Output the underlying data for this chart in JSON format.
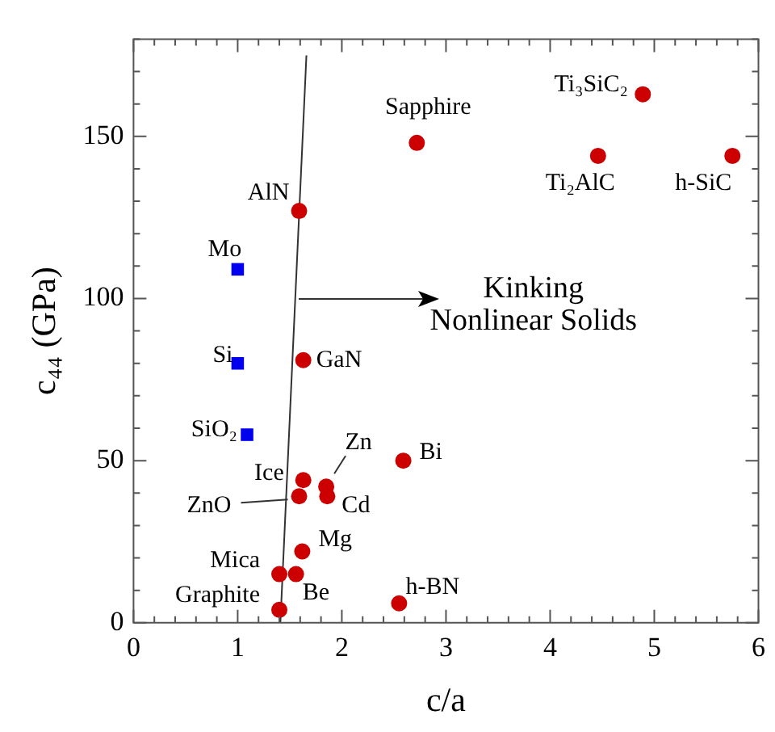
{
  "chart_data": {
    "type": "scatter",
    "xlabel": "c/a",
    "ylabel": "c₄₄ (GPa)",
    "xlim": [
      0,
      6
    ],
    "ylim": [
      0,
      180
    ],
    "xticks": [
      0,
      {
        "value": 0.2,
        "label": null
      },
      {
        "value": 0.4,
        "label": null
      },
      {
        "value": 0.6,
        "label": null
      },
      {
        "value": 0.8,
        "label": null
      },
      1,
      {
        "value": 1.2,
        "label": null
      },
      {
        "value": 1.4,
        "label": null
      },
      {
        "value": 1.6,
        "label": null
      },
      {
        "value": 1.8,
        "label": null
      },
      2,
      {
        "value": 2.2,
        "label": null
      },
      {
        "value": 2.4,
        "label": null
      },
      {
        "value": 2.6,
        "label": null
      },
      {
        "value": 2.8,
        "label": null
      },
      3,
      {
        "value": 3.2,
        "label": null
      },
      {
        "value": 3.4,
        "label": null
      },
      {
        "value": 3.6,
        "label": null
      },
      {
        "value": 3.8,
        "label": null
      },
      4,
      {
        "value": 4.2,
        "label": null
      },
      {
        "value": 4.4,
        "label": null
      },
      {
        "value": 4.6,
        "label": null
      },
      {
        "value": 4.8,
        "label": null
      },
      5,
      {
        "value": 5.2,
        "label": null
      },
      {
        "value": 5.4,
        "label": null
      },
      {
        "value": 5.6,
        "label": null
      },
      {
        "value": 5.8,
        "label": null
      },
      6
    ],
    "yticks": [
      0,
      {
        "value": 10,
        "label": null
      },
      {
        "value": 20,
        "label": null
      },
      {
        "value": 30,
        "label": null
      },
      {
        "value": 40,
        "label": null
      },
      50,
      {
        "value": 60,
        "label": null
      },
      {
        "value": 70,
        "label": null
      },
      {
        "value": 80,
        "label": null
      },
      {
        "value": 90,
        "label": null
      },
      100,
      {
        "value": 110,
        "label": null
      },
      {
        "value": 120,
        "label": null
      },
      {
        "value": 130,
        "label": null
      },
      {
        "value": 140,
        "label": null
      },
      150,
      {
        "value": 160,
        "label": null
      },
      {
        "value": 170,
        "label": null
      },
      {
        "value": 180,
        "label": null
      }
    ],
    "grid": false,
    "legend": false,
    "series": [
      {
        "type": "scatter",
        "marker": "circle",
        "color": "#cc0000",
        "x": [
          1.59,
          2.72,
          4.89,
          4.46,
          5.75,
          1.63,
          2.59,
          1.63,
          1.85,
          1.59,
          1.86,
          1.62,
          1.4,
          1.56,
          1.4,
          2.55
        ],
        "values": [
          127,
          148,
          163,
          144,
          144,
          81,
          50,
          44,
          42,
          39,
          39,
          22,
          15,
          15,
          4,
          6
        ]
      },
      {
        "type": "scatter",
        "marker": "square",
        "color": "#0000ee",
        "x": [
          1.0,
          1.0,
          1.09
        ],
        "values": [
          109,
          80,
          58
        ]
      },
      {
        "type": "line",
        "marker": "none",
        "line_style": "solid",
        "color": "#333333",
        "x": [
          1.41,
          1.66
        ],
        "values": [
          0,
          175
        ]
      }
    ],
    "annotations": [
      {
        "text": "AlN",
        "x": 1.59,
        "y": 127
      },
      {
        "text": "Sapphire",
        "x": 2.72,
        "y": 148
      },
      {
        "text": "Ti₃SiC₂",
        "x": 4.89,
        "y": 163
      },
      {
        "text": "Ti₂AlC",
        "x": 4.46,
        "y": 144
      },
      {
        "text": "h-SiC",
        "x": 5.75,
        "y": 144
      },
      {
        "text": "GaN",
        "x": 1.63,
        "y": 81
      },
      {
        "text": "Bi",
        "x": 2.59,
        "y": 50
      },
      {
        "text": "Ice",
        "x": 1.63,
        "y": 44
      },
      {
        "text": "Zn",
        "x": 1.85,
        "y": 42
      },
      {
        "text": "ZnO",
        "x": 1.59,
        "y": 39
      },
      {
        "text": "Cd",
        "x": 1.86,
        "y": 39
      },
      {
        "text": "Mg",
        "x": 1.62,
        "y": 22
      },
      {
        "text": "Mica",
        "x": 1.4,
        "y": 15
      },
      {
        "text": "Be",
        "x": 1.56,
        "y": 15
      },
      {
        "text": "Graphite",
        "x": 1.4,
        "y": 4
      },
      {
        "text": "h-BN",
        "x": 2.55,
        "y": 6
      },
      {
        "text": "Mo",
        "x": 1.0,
        "y": 109
      },
      {
        "text": "Si",
        "x": 1.0,
        "y": 80
      },
      {
        "text": "SiO₂",
        "x": 1.09,
        "y": 58
      },
      "Kinking\nNonlinear Solids"
    ]
  }
}
